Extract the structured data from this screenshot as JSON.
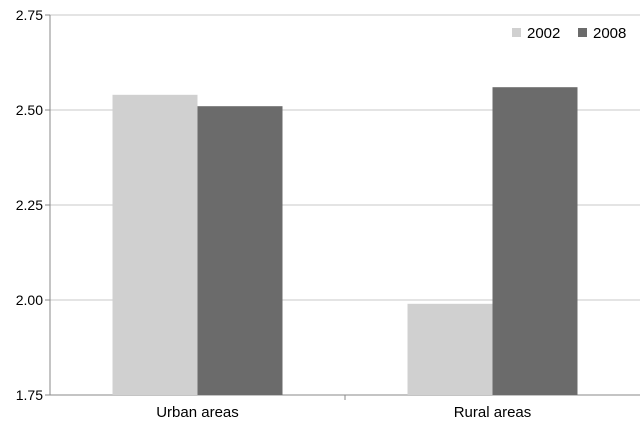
{
  "chart_data": {
    "type": "bar",
    "categories": [
      "Urban areas",
      "Rural areas"
    ],
    "series": [
      {
        "name": "2002",
        "values": [
          2.54,
          1.99
        ],
        "color": "#d0d0d0"
      },
      {
        "name": "2008",
        "values": [
          2.51,
          2.56
        ],
        "color": "#6b6b6b"
      }
    ],
    "ylim": [
      1.75,
      2.75
    ],
    "yticks": [
      "1.75",
      "2.00",
      "2.25",
      "2.50",
      "2.75"
    ],
    "grid": true,
    "legend_position": "top-right",
    "gridline_color": "#c8c8c8"
  }
}
